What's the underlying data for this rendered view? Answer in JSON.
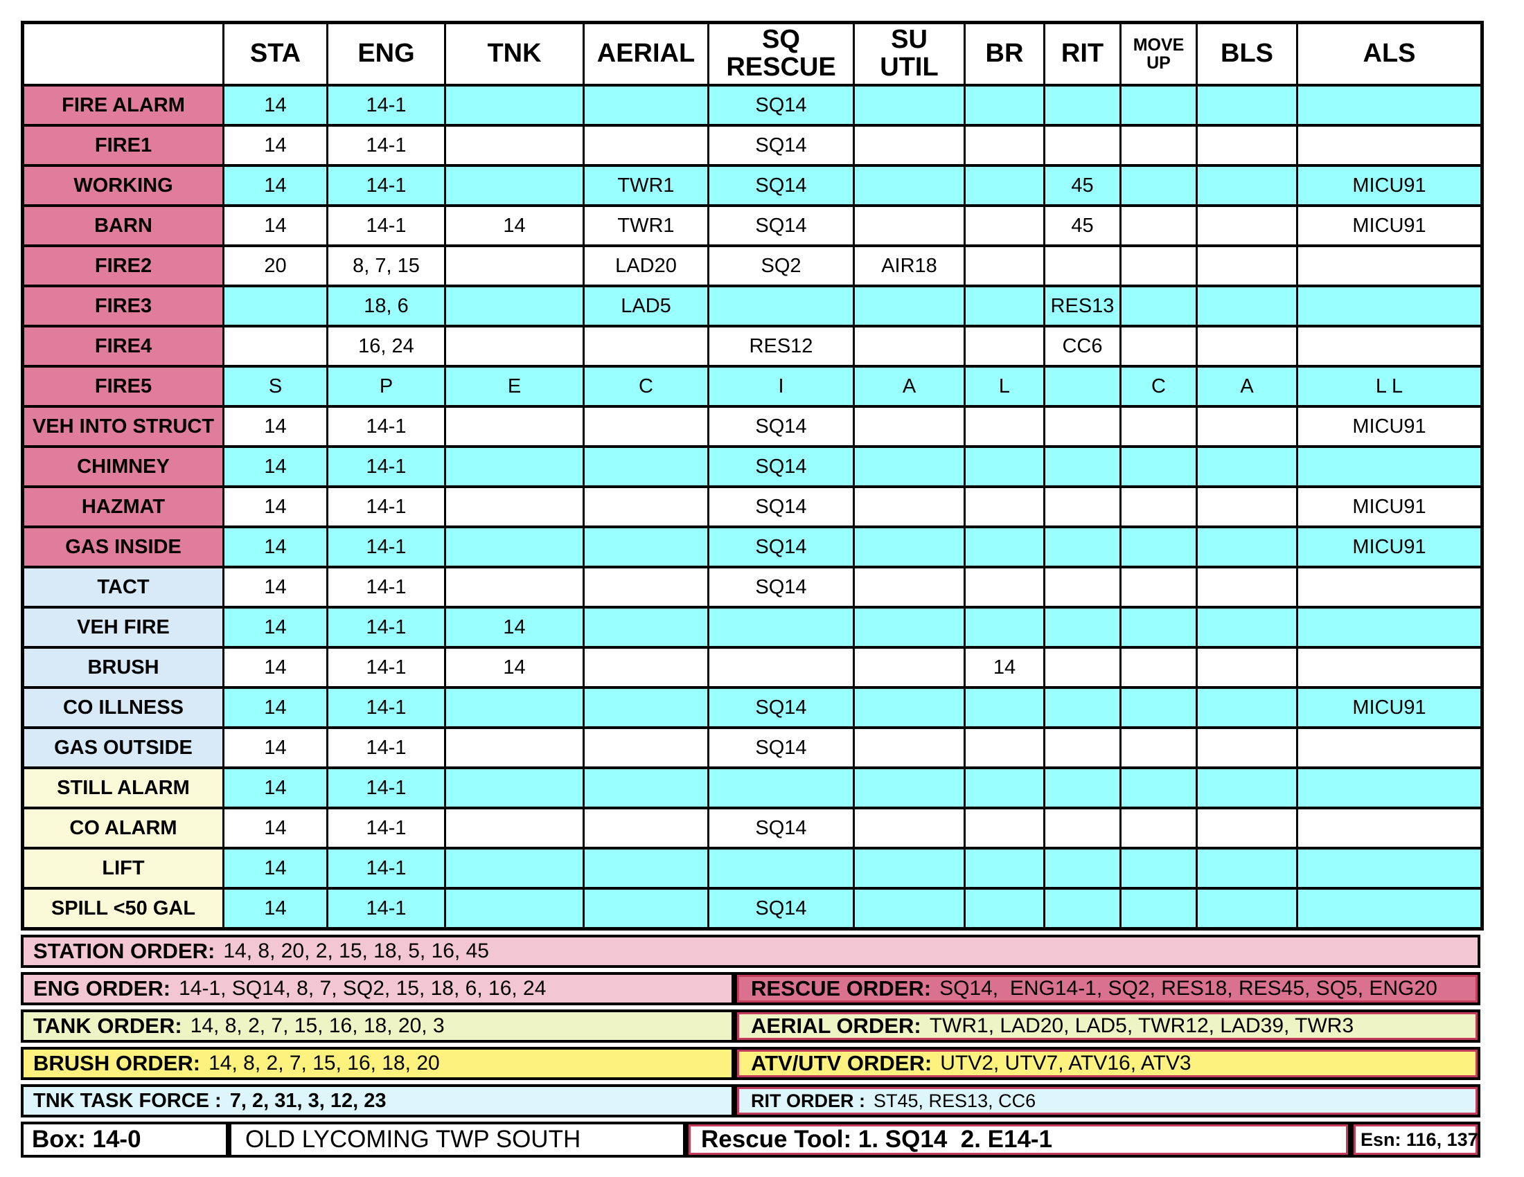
{
  "colors": {
    "rose_label": "#E07C9C",
    "cyan_cell": "#99FFFF",
    "blue_label": "#D8EAF8",
    "yellow_label": "#FAFAD8",
    "order_pink": "#F2C7D3",
    "rescue_pink": "#D9718F",
    "order_green": "#EFF4C4",
    "order_yellow": "#FCF27D",
    "order_cyan": "#DDF6FB",
    "crimson_border": "#C33C5E"
  },
  "table": {
    "columns": [
      {
        "key": "incident",
        "label": ""
      },
      {
        "key": "sta",
        "label": "STA"
      },
      {
        "key": "eng",
        "label": "ENG"
      },
      {
        "key": "tnk",
        "label": "TNK"
      },
      {
        "key": "aerial",
        "label": "AERIAL"
      },
      {
        "key": "sq-rescue",
        "label": "SQ\nRESCUE"
      },
      {
        "key": "su-util",
        "label": "SU\nUTIL"
      },
      {
        "key": "br",
        "label": "BR"
      },
      {
        "key": "rit",
        "label": "RIT"
      },
      {
        "key": "move-up",
        "label": "MOVE\nUP",
        "small": true
      },
      {
        "key": "bls",
        "label": "BLS"
      },
      {
        "key": "als",
        "label": "ALS"
      }
    ],
    "rows": [
      {
        "label": "FIRE ALARM",
        "label_color": "rose",
        "bg": "cyan",
        "cells": [
          "14",
          "14-1",
          "",
          "",
          "SQ14",
          "",
          "",
          "",
          "",
          "",
          ""
        ]
      },
      {
        "label": "FIRE1",
        "label_color": "rose",
        "bg": "white",
        "cells": [
          "14",
          "14-1",
          "",
          "",
          "SQ14",
          "",
          "",
          "",
          "",
          "",
          ""
        ]
      },
      {
        "label": "WORKING",
        "label_color": "rose",
        "bg": "cyan",
        "cells": [
          "14",
          "14-1",
          "",
          "TWR1",
          "SQ14",
          "",
          "",
          "45",
          "",
          "",
          "MICU91"
        ]
      },
      {
        "label": "BARN",
        "label_color": "rose",
        "bg": "white",
        "cells": [
          "14",
          "14-1",
          "14",
          "TWR1",
          "SQ14",
          "",
          "",
          "45",
          "",
          "",
          "MICU91"
        ]
      },
      {
        "label": "FIRE2",
        "label_color": "rose",
        "bg": "white",
        "cells": [
          "20",
          "8, 7, 15",
          "",
          "LAD20",
          "SQ2",
          "AIR18",
          "",
          "",
          "",
          "",
          ""
        ]
      },
      {
        "label": "FIRE3",
        "label_color": "rose",
        "bg": "cyan",
        "cells": [
          "",
          "18, 6",
          "",
          "LAD5",
          "",
          "",
          "",
          "RES13",
          "",
          "",
          ""
        ]
      },
      {
        "label": "FIRE4",
        "label_color": "rose",
        "bg": "white",
        "cells": [
          "",
          "16, 24",
          "",
          "",
          "RES12",
          "",
          "",
          "CC6",
          "",
          "",
          ""
        ]
      },
      {
        "label": "FIRE5",
        "label_color": "rose",
        "bg": "cyan",
        "cells": [
          "S",
          "P",
          "E",
          "C",
          "I",
          "A",
          "L",
          "",
          "C",
          "A",
          "L L"
        ]
      },
      {
        "label": "VEH INTO STRUCT",
        "label_color": "rose",
        "bg": "white",
        "cells": [
          "14",
          "14-1",
          "",
          "",
          "SQ14",
          "",
          "",
          "",
          "",
          "",
          "MICU91"
        ]
      },
      {
        "label": "CHIMNEY",
        "label_color": "rose",
        "bg": "cyan",
        "cells": [
          "14",
          "14-1",
          "",
          "",
          "SQ14",
          "",
          "",
          "",
          "",
          "",
          ""
        ]
      },
      {
        "label": "HAZMAT",
        "label_color": "rose",
        "bg": "white",
        "cells": [
          "14",
          "14-1",
          "",
          "",
          "SQ14",
          "",
          "",
          "",
          "",
          "",
          "MICU91"
        ]
      },
      {
        "label": "GAS INSIDE",
        "label_color": "rose",
        "bg": "cyan",
        "cells": [
          "14",
          "14-1",
          "",
          "",
          "SQ14",
          "",
          "",
          "",
          "",
          "",
          "MICU91"
        ]
      },
      {
        "label": "TACT",
        "label_color": "blue",
        "bg": "white",
        "cells": [
          "14",
          "14-1",
          "",
          "",
          "SQ14",
          "",
          "",
          "",
          "",
          "",
          ""
        ]
      },
      {
        "label": "VEH FIRE",
        "label_color": "blue",
        "bg": "cyan",
        "cells": [
          "14",
          "14-1",
          "14",
          "",
          "",
          "",
          "",
          "",
          "",
          "",
          ""
        ]
      },
      {
        "label": "BRUSH",
        "label_color": "blue",
        "bg": "white",
        "cells": [
          "14",
          "14-1",
          "14",
          "",
          "",
          "",
          "14",
          "",
          "",
          "",
          ""
        ]
      },
      {
        "label": "CO ILLNESS",
        "label_color": "blue",
        "bg": "cyan",
        "cells": [
          "14",
          "14-1",
          "",
          "",
          "SQ14",
          "",
          "",
          "",
          "",
          "",
          "MICU91"
        ]
      },
      {
        "label": "GAS OUTSIDE",
        "label_color": "blue",
        "bg": "white",
        "cells": [
          "14",
          "14-1",
          "",
          "",
          "SQ14",
          "",
          "",
          "",
          "",
          "",
          ""
        ]
      },
      {
        "label": "STILL ALARM",
        "label_color": "yellow",
        "bg": "cyan",
        "cells": [
          "14",
          "14-1",
          "",
          "",
          "",
          "",
          "",
          "",
          "",
          "",
          ""
        ]
      },
      {
        "label": "CO ALARM",
        "label_color": "yellow",
        "bg": "white",
        "cells": [
          "14",
          "14-1",
          "",
          "",
          "SQ14",
          "",
          "",
          "",
          "",
          "",
          ""
        ]
      },
      {
        "label": "LIFT",
        "label_color": "yellow",
        "bg": "cyan",
        "cells": [
          "14",
          "14-1",
          "",
          "",
          "",
          "",
          "",
          "",
          "",
          "",
          ""
        ]
      },
      {
        "label": "SPILL <50 GAL",
        "label_color": "yellow",
        "bg": "cyan",
        "cells": [
          "14",
          "14-1",
          "",
          "",
          "SQ14",
          "",
          "",
          "",
          "",
          "",
          ""
        ]
      }
    ]
  },
  "orders": {
    "station": {
      "label": "STATION ORDER:",
      "value": "14, 8, 20, 2, 15, 18, 5, 16, 45"
    },
    "eng": {
      "label": "ENG ORDER:",
      "value": "14-1, SQ14, 8, 7, SQ2, 15, 18, 6, 16, 24"
    },
    "tank": {
      "label": "TANK ORDER:",
      "value": "14, 8, 2, 7, 15, 16, 18, 20, 3"
    },
    "brush": {
      "label": "BRUSH ORDER:",
      "value": "14, 8, 2, 7, 15, 16, 18, 20"
    },
    "tnk_task_force": {
      "label": "TNK TASK FORCE :",
      "value": "7, 2, 31, 3, 12, 23"
    },
    "rescue": {
      "label": "RESCUE ORDER:",
      "value": "SQ14,  ENG14-1, SQ2, RES18, RES45, SQ5, ENG20"
    },
    "aerial": {
      "label": "AERIAL ORDER:",
      "value": "TWR1, LAD20, LAD5, TWR12, LAD39, TWR3"
    },
    "atv_utv": {
      "label": "ATV/UTV ORDER:",
      "value": "UTV2, UTV7, ATV16, ATV3"
    },
    "rit": {
      "label": "RIT ORDER :",
      "value": "ST45, RES13, CC6"
    }
  },
  "footer": {
    "box": "Box: 14-0",
    "municipality": "OLD LYCOMING TWP SOUTH",
    "rescue_tool": "Rescue Tool: 1. SQ14  2. E14-1",
    "esn": "Esn: 116, 137"
  }
}
